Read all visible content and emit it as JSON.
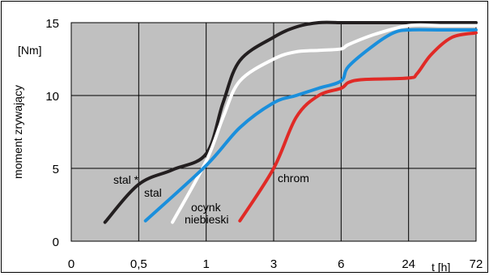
{
  "chart_data": {
    "type": "line",
    "ylabel": "moment zrywający",
    "yunit": "[Nm]",
    "xlabel": "t [h]",
    "x_ticks": [
      "0",
      "0,5",
      "1",
      "3",
      "6",
      "24",
      "72"
    ],
    "y_ticks": [
      "0",
      "5",
      "10",
      "15"
    ],
    "ylim": [
      0,
      15
    ],
    "grid": true,
    "series": [
      {
        "name": "stal",
        "color": "#231f20",
        "x": [
          0.25,
          0.5,
          0.75,
          1,
          1.5,
          2,
          3,
          4,
          5,
          6,
          8,
          24,
          48,
          72
        ],
        "y": [
          1.3,
          3.9,
          4.9,
          6.0,
          9.5,
          12.4,
          14.0,
          14.7,
          15.0,
          15.0,
          15.0,
          15.0,
          15.0,
          15.0
        ]
      },
      {
        "name": "ocynk",
        "color": "#ffffff",
        "x": [
          0.75,
          1,
          1.5,
          2,
          3,
          4,
          5,
          6,
          8,
          15,
          24,
          48,
          72
        ],
        "y": [
          1.3,
          5.5,
          8.5,
          11.0,
          12.5,
          13.0,
          13.1,
          13.2,
          13.5,
          14.2,
          14.8,
          14.8,
          14.8
        ]
      },
      {
        "name": "niebieski",
        "color": "#1a8fdc",
        "x": [
          0.55,
          1,
          2,
          3,
          4,
          5,
          6,
          8,
          15,
          20,
          24,
          48,
          72
        ],
        "y": [
          1.4,
          5.2,
          7.8,
          9.5,
          10.0,
          10.5,
          11.0,
          12.0,
          13.5,
          14.3,
          14.5,
          14.5,
          14.5
        ]
      },
      {
        "name": "chrom",
        "color": "#e02a26",
        "x": [
          2,
          3,
          4,
          5,
          6,
          8,
          12,
          24,
          30,
          40,
          55,
          72
        ],
        "y": [
          1.4,
          5.0,
          8.5,
          10.0,
          10.5,
          10.9,
          11.1,
          11.2,
          11.5,
          12.8,
          14.0,
          14.3
        ]
      }
    ]
  },
  "labels": {
    "stal_star": "stal *",
    "stal": "stal",
    "ocynk": "ocynk",
    "niebieski": "niebieski",
    "chrom": "chrom"
  }
}
